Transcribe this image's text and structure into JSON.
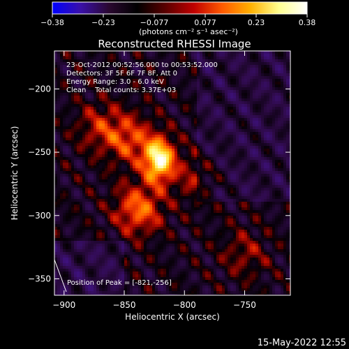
{
  "colorbar": {
    "ticks": [
      "−0.38",
      "−0.23",
      "−0.077",
      "0.077",
      "0.23",
      "0.38"
    ],
    "min": -0.38,
    "max": 0.38,
    "unit_label": "(photons cm⁻² s⁻¹ asec⁻²)",
    "colors": [
      "#0000ff",
      "#3a10a8",
      "#2a0830",
      "#000000",
      "#5a0000",
      "#c00000",
      "#ff5a00",
      "#ffb000",
      "#ffff90",
      "#ffffff"
    ]
  },
  "chart_data": {
    "type": "heatmap",
    "title": "Reconstructed RHESSI Image",
    "xlabel": "Heliocentric X (arcsec)",
    "ylabel": "Heliocentric Y (arcsec)",
    "xlim": [
      -908,
      -712
    ],
    "ylim": [
      -363,
      -170
    ],
    "xticks": [
      -900,
      -850,
      -800,
      -750
    ],
    "xtick_labels": [
      "−900",
      "−850",
      "−800",
      "−750"
    ],
    "yticks": [
      -200,
      -250,
      -300,
      -350
    ],
    "ytick_labels": [
      "−200",
      "−250",
      "−300",
      "−350"
    ],
    "sources": [
      {
        "x": -821,
        "y": -256,
        "peak": 0.38
      },
      {
        "x": -838,
        "y": -295,
        "peak": 0.21
      },
      {
        "x": -845,
        "y": -240,
        "peak": 0.16
      },
      {
        "x": -870,
        "y": -230,
        "peak": 0.12
      },
      {
        "x": -790,
        "y": -270,
        "peak": 0.1
      },
      {
        "x": -750,
        "y": -330,
        "peak": 0.09
      }
    ],
    "peak_position": [
      -821,
      -256
    ],
    "annotations": [
      "23-Oct-2012 00:52:56.000 to 00:53:52.000",
      "Detectors: 3F 5F 6F 7F 8F, Att 0",
      "Energy Range: 3.0 - 6.0 keV",
      "Clean    Total counts: 3.37E+03"
    ],
    "peak_label": "Position of Peak = [-821,-256]"
  },
  "footer": {
    "timestamp": "15-May-2022 12:55"
  }
}
